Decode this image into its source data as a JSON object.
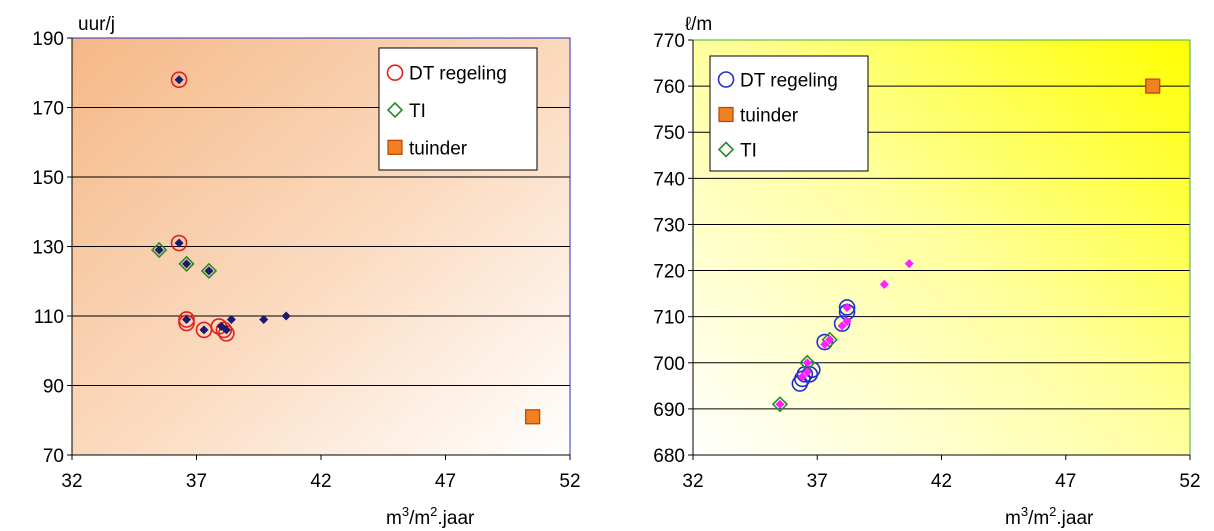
{
  "chart_data": [
    {
      "type": "scatter",
      "title": "",
      "xlabel": "m3/m2.jaar",
      "xlabel_base": "m",
      "xlabel_sup1": "3",
      "xlabel_mid": "/m",
      "xlabel_sup2": "2",
      "xlabel_end": ".jaar",
      "ylabel": "uur/j",
      "xlim": [
        32,
        52
      ],
      "ylim": [
        70,
        190
      ],
      "xticks": [
        "32",
        "37",
        "42",
        "47",
        "52"
      ],
      "yticks": [
        "70",
        "90",
        "110",
        "130",
        "150",
        "170",
        "190"
      ],
      "grid": "horizontal",
      "background": "orange gradient (dark top-left to white bottom-right)",
      "legend_position": "top-right",
      "legend": [
        {
          "label": "DT regeling",
          "marker": "circle",
          "color": "#e02020"
        },
        {
          "label": "TI",
          "marker": "diamond",
          "color": "#2a8a2a"
        },
        {
          "label": "tuinder",
          "marker": "square",
          "color": "#f08020"
        }
      ],
      "series": [
        {
          "name": "DT regeling",
          "marker": "circle",
          "color": "#e02020",
          "x": [
            36.3,
            36.3,
            36.6,
            36.6,
            37.3,
            37.9,
            38.1,
            38.2
          ],
          "y": [
            178,
            131,
            109,
            108,
            106,
            107,
            106,
            105
          ]
        },
        {
          "name": "TI",
          "marker": "diamond",
          "color": "#2a8a2a",
          "x": [
            35.5,
            36.6,
            37.5
          ],
          "y": [
            129,
            125,
            123
          ]
        },
        {
          "name": "tuinder",
          "marker": "square",
          "color": "#f08020",
          "x": [
            50.5
          ],
          "y": [
            81
          ]
        },
        {
          "name": "",
          "marker": "filled-diamond",
          "color": "#1a1a6e",
          "x": [
            36.3,
            36.3,
            35.5,
            36.6,
            36.6,
            37.3,
            37.5,
            38.0,
            38.2,
            38.4,
            39.7,
            40.6
          ],
          "y": [
            178,
            131,
            129,
            125,
            109,
            106,
            123,
            107,
            106,
            109,
            109,
            110
          ]
        }
      ]
    },
    {
      "type": "scatter",
      "title": "",
      "xlabel": "m3/m2.jaar",
      "xlabel_base": "m",
      "xlabel_sup1": "3",
      "xlabel_mid": "/m",
      "xlabel_sup2": "2",
      "xlabel_end": ".jaar",
      "ylabel": "ℓ/m",
      "xlim": [
        32,
        52
      ],
      "ylim": [
        680,
        770
      ],
      "xticks": [
        "32",
        "37",
        "42",
        "47",
        "52"
      ],
      "yticks": [
        "680",
        "690",
        "700",
        "710",
        "720",
        "730",
        "740",
        "750",
        "760",
        "770"
      ],
      "grid": "horizontal",
      "background": "yellow gradient (white bottom-left to bright yellow top-right)",
      "legend_position": "top-left",
      "legend": [
        {
          "label": "DT regeling",
          "marker": "circle",
          "color": "#2030d0"
        },
        {
          "label": "tuinder",
          "marker": "square",
          "color": "#f08020"
        },
        {
          "label": "TI",
          "marker": "diamond",
          "color": "#2a8a2a"
        }
      ],
      "series": [
        {
          "name": "DT regeling",
          "marker": "circle",
          "color": "#2030d0",
          "x": [
            36.3,
            36.4,
            36.5,
            36.7,
            36.8,
            37.3,
            38.0,
            38.2,
            38.2
          ],
          "y": [
            695.5,
            696.5,
            697.5,
            697.5,
            698.5,
            704.5,
            708.5,
            711,
            712
          ]
        },
        {
          "name": "tuinder",
          "marker": "square",
          "color": "#f08020",
          "x": [
            50.5
          ],
          "y": [
            760
          ]
        },
        {
          "name": "TI",
          "marker": "diamond",
          "color": "#2a8a2a",
          "x": [
            35.5,
            36.6,
            37.5
          ],
          "y": [
            691,
            700,
            705
          ]
        },
        {
          "name": "",
          "marker": "filled-diamond",
          "color": "#ff20ff",
          "x": [
            35.5,
            36.4,
            36.6,
            36.6,
            37.3,
            37.5,
            38.0,
            38.2,
            38.2,
            39.7,
            40.7
          ],
          "y": [
            691,
            697,
            698,
            700,
            704,
            705,
            708,
            709,
            712,
            717,
            721.5
          ]
        }
      ]
    }
  ]
}
